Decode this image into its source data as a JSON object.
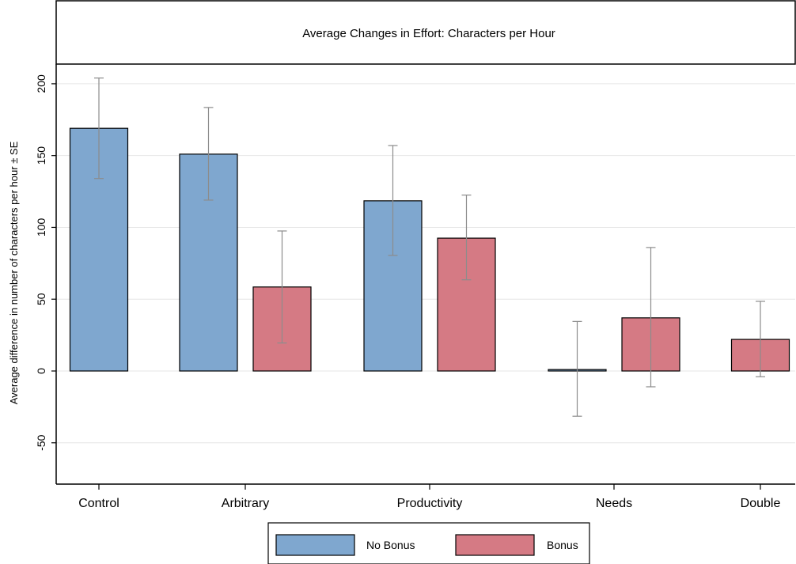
{
  "chart_data": {
    "type": "bar",
    "title": "Average Changes in Effort: Characters per Hour",
    "ylabel": "Average difference in number of characters per hour ± SE",
    "xlabel": "",
    "ylim": [
      -65,
      215
    ],
    "yticks": [
      200,
      150,
      100,
      50,
      0,
      -50
    ],
    "grid": true,
    "legend_placement": "bottom-center",
    "categories": [
      "Control",
      "Arbitrary",
      "Productivity",
      "Needs",
      "Double"
    ],
    "series": [
      {
        "name": "No Bonus",
        "color": "#7fa7cf",
        "values": [
          169,
          151,
          118.5,
          1,
          null
        ],
        "se_low": [
          134,
          119,
          80.5,
          -31.5,
          null
        ],
        "se_high": [
          204,
          183.5,
          157,
          34.5,
          null
        ]
      },
      {
        "name": "Bonus",
        "color": "#d57a84",
        "values": [
          null,
          58.5,
          92.5,
          37,
          22
        ],
        "se_low": [
          null,
          19.5,
          63.5,
          -11,
          -4
        ],
        "se_high": [
          null,
          97.5,
          122.5,
          86,
          48.5
        ]
      }
    ]
  }
}
